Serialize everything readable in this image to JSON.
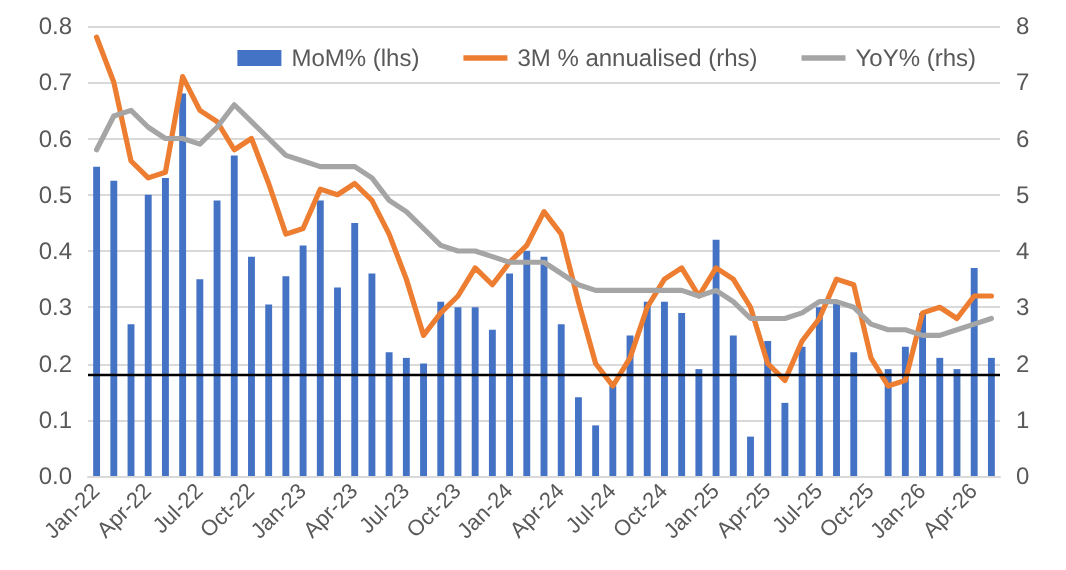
{
  "chart_data": {
    "type": "bar",
    "categories": [
      "Jan-22",
      null,
      null,
      "Apr-22",
      null,
      null,
      "Jul-22",
      null,
      null,
      "Oct-22",
      null,
      null,
      "Jan-23",
      null,
      null,
      "Apr-23",
      null,
      null,
      "Jul-23",
      null,
      null,
      "Oct-23",
      null,
      null,
      "Jan-24",
      null,
      null,
      "Apr-24",
      null,
      null,
      "Jul-24",
      null,
      null,
      "Oct-24",
      null,
      null,
      "Jan-25",
      null,
      null,
      "Apr-25",
      null,
      null,
      "Jul-25",
      null,
      null,
      "Oct-25",
      null,
      null,
      "Jan-26",
      null,
      null,
      "Apr-26",
      null
    ],
    "series": [
      {
        "name": "MoM% (lhs)",
        "color": "#4472c4",
        "values": [
          0.55,
          0.525,
          0.27,
          0.5,
          0.53,
          0.68,
          0.35,
          0.49,
          0.57,
          0.39,
          0.305,
          0.355,
          0.41,
          0.49,
          0.335,
          0.45,
          0.36,
          0.22,
          0.21,
          0.2,
          0.31,
          0.3,
          0.3,
          0.26,
          0.36,
          0.4,
          0.39,
          0.27,
          0.14,
          0.09,
          0.16,
          0.25,
          0.31,
          0.31,
          0.29,
          0.19,
          0.42,
          0.25,
          0.07,
          0.24,
          0.13,
          0.23,
          0.3,
          0.31,
          0.22,
          null,
          0.19,
          0.23,
          0.29,
          0.21,
          0.19,
          0.37,
          0.21
        ]
      },
      {
        "name": "3M % annualised (rhs)",
        "type": "line",
        "axis": "y2",
        "color": "#ed7d31",
        "values": [
          7.8,
          7.0,
          5.6,
          5.3,
          5.4,
          7.1,
          6.5,
          6.3,
          5.8,
          6.0,
          5.2,
          4.3,
          4.4,
          5.1,
          5.0,
          5.2,
          4.9,
          4.3,
          3.5,
          2.5,
          2.9,
          3.2,
          3.7,
          3.4,
          3.8,
          4.1,
          4.7,
          4.3,
          3.1,
          2.0,
          1.6,
          2.1,
          3.0,
          3.5,
          3.7,
          3.2,
          3.7,
          3.5,
          3.0,
          2.0,
          1.7,
          2.4,
          2.8,
          3.5,
          3.4,
          2.1,
          1.6,
          1.7,
          2.9,
          3.0,
          2.8,
          3.2,
          3.2
        ]
      },
      {
        "name": "YoY% (rhs)",
        "type": "line",
        "axis": "y2",
        "color": "#a5a5a5",
        "values": [
          5.8,
          6.4,
          6.5,
          6.2,
          6.0,
          6.0,
          5.9,
          6.2,
          6.6,
          6.3,
          6.0,
          5.7,
          5.6,
          5.5,
          5.5,
          5.5,
          5.3,
          4.9,
          4.7,
          4.4,
          4.1,
          4.0,
          4.0,
          3.9,
          3.8,
          3.8,
          3.8,
          3.6,
          3.4,
          3.3,
          3.3,
          3.3,
          3.3,
          3.3,
          3.3,
          3.2,
          3.3,
          3.1,
          2.8,
          2.8,
          2.8,
          2.9,
          3.1,
          3.1,
          3.0,
          2.7,
          2.6,
          2.6,
          2.5,
          2.5,
          2.6,
          2.7,
          2.8
        ]
      }
    ],
    "ylim": [
      0,
      0.8
    ],
    "yticks": [
      {
        "value": 0,
        "label": "0.0"
      },
      0.1,
      0.2,
      0.3,
      0.4,
      0.5,
      0.6,
      0.7,
      0.8
    ],
    "y2lim": [
      0,
      8
    ],
    "y2ticks": [
      0,
      1,
      2,
      3,
      4,
      5,
      6,
      7,
      8
    ],
    "ref_lines": [
      {
        "axis": "y",
        "value": 0.18,
        "color": "#000000"
      }
    ],
    "grid": "y",
    "legend": "top right",
    "marker": "none",
    "line_style": "solid"
  }
}
